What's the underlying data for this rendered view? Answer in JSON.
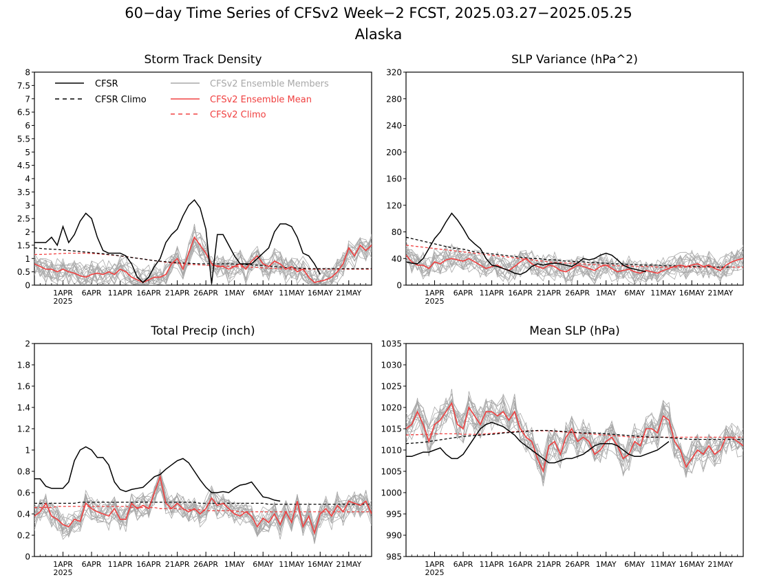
{
  "figure": {
    "title_line1": "60−day Time Series of CFSv2 Week−2 FCST, 2025.03.27−2025.05.25",
    "title_line2": "Alaska"
  },
  "legend": {
    "cfsr": "CFSR",
    "cfsr_climo": "CFSR Climo",
    "members": "CFSv2 Ensemble Members",
    "ens_mean": "CFSv2 Ensemble Mean",
    "cfsv2_climo": "CFSv2 Climo"
  },
  "colors": {
    "cfsr": "#000000",
    "members": "#a8a8a8",
    "ens_mean": "#f04040",
    "cfsv2_climo": "#f04040"
  },
  "x_ticks": [
    {
      "day": 5,
      "label": "1APR",
      "sub": "2025"
    },
    {
      "day": 10,
      "label": "6APR"
    },
    {
      "day": 15,
      "label": "11APR"
    },
    {
      "day": 20,
      "label": "16APR"
    },
    {
      "day": 25,
      "label": "21APR"
    },
    {
      "day": 30,
      "label": "26APR"
    },
    {
      "day": 35,
      "label": "1MAY"
    },
    {
      "day": 40,
      "label": "6MAY"
    },
    {
      "day": 45,
      "label": "11MAY"
    },
    {
      "day": 50,
      "label": "16MAY"
    },
    {
      "day": 55,
      "label": "21MAY"
    }
  ],
  "chart_data": [
    {
      "type": "line",
      "title": "Storm Track Density",
      "ylim": [
        0,
        8
      ],
      "yticks": [
        "0",
        "0.5",
        "1",
        "1.5",
        "2",
        "2.5",
        "3",
        "3.5",
        "4",
        "4.5",
        "5",
        "5.5",
        "6",
        "6.5",
        "7",
        "7.5",
        "8"
      ],
      "series": {
        "cfsr": [
          1.6,
          1.6,
          1.6,
          1.8,
          1.5,
          2.2,
          1.6,
          1.9,
          2.4,
          2.7,
          2.5,
          1.8,
          1.3,
          1.2,
          1.2,
          1.2,
          1.1,
          0.8,
          0.3,
          0.1,
          0.3,
          0.7,
          1.0,
          1.6,
          1.9,
          2.1,
          2.6,
          3.0,
          3.2,
          2.9,
          2.1,
          0.05,
          1.9,
          1.9,
          1.5,
          1.1,
          0.8,
          0.8,
          0.8,
          1.0,
          1.2,
          1.4,
          2.0,
          2.3,
          2.3,
          2.2,
          1.8,
          1.2,
          1.1,
          0.8,
          0.4
        ],
        "cfsr_climo": [
          1.4,
          1.38,
          1.36,
          1.35,
          1.34,
          1.32,
          1.3,
          1.28,
          1.26,
          1.24,
          1.22,
          1.2,
          1.18,
          1.15,
          1.13,
          1.1,
          1.07,
          1.04,
          1.01,
          0.98,
          0.95,
          0.92,
          0.9,
          0.88,
          0.86,
          0.84,
          0.83,
          0.82,
          0.81,
          0.8,
          0.8,
          0.8,
          0.8,
          0.8,
          0.8,
          0.79,
          0.78,
          0.77,
          0.76,
          0.75,
          0.74,
          0.72,
          0.7,
          0.68,
          0.66,
          0.65,
          0.64,
          0.63,
          0.62,
          0.62,
          0.62,
          0.62,
          0.62,
          0.62,
          0.62,
          0.62,
          0.62,
          0.62,
          0.62,
          0.62
        ],
        "ens_mean": [
          0.8,
          0.7,
          0.6,
          0.6,
          0.5,
          0.6,
          0.5,
          0.45,
          0.35,
          0.3,
          0.4,
          0.45,
          0.4,
          0.5,
          0.4,
          0.6,
          0.5,
          0.3,
          0.2,
          0.1,
          0.2,
          0.3,
          0.3,
          0.4,
          0.8,
          1.0,
          0.6,
          1.2,
          1.8,
          1.5,
          1.2,
          0.8,
          0.7,
          0.7,
          0.6,
          0.7,
          0.8,
          0.6,
          0.9,
          1.1,
          0.8,
          0.7,
          0.9,
          0.8,
          0.6,
          0.7,
          0.5,
          0.6,
          0.3,
          0.1,
          0.15,
          0.2,
          0.3,
          0.5,
          0.8,
          1.4,
          1.1,
          1.5,
          1.3,
          1.5,
          1.0,
          0.7,
          0.5,
          1.1
        ],
        "cfsv2_climo": [
          1.15,
          1.15,
          1.16,
          1.17,
          1.18,
          1.19,
          1.2,
          1.2,
          1.2,
          1.2,
          1.19,
          1.18,
          1.16,
          1.14,
          1.12,
          1.1,
          1.07,
          1.04,
          1.01,
          0.98,
          0.95,
          0.92,
          0.89,
          0.86,
          0.84,
          0.82,
          0.8,
          0.78,
          0.77,
          0.76,
          0.75,
          0.74,
          0.73,
          0.72,
          0.71,
          0.7,
          0.69,
          0.68,
          0.67,
          0.66,
          0.65,
          0.64,
          0.63,
          0.62,
          0.61,
          0.6,
          0.6,
          0.6,
          0.6,
          0.6,
          0.6,
          0.6,
          0.6,
          0.6,
          0.6,
          0.6,
          0.6,
          0.6,
          0.6,
          0.6
        ]
      }
    },
    {
      "type": "line",
      "title": "SLP Variance (hPa^2)",
      "ylim": [
        0,
        320
      ],
      "yticks": [
        "0",
        "40",
        "80",
        "120",
        "160",
        "200",
        "240",
        "280",
        "320"
      ],
      "series": {
        "cfsr": [
          35,
          33,
          32,
          40,
          55,
          70,
          80,
          95,
          108,
          98,
          85,
          70,
          62,
          55,
          40,
          30,
          28,
          25,
          22,
          18,
          16,
          20,
          28,
          32,
          30,
          32,
          33,
          32,
          30,
          28,
          33,
          40,
          38,
          40,
          45,
          48,
          45,
          38,
          30,
          26,
          24,
          22,
          20
        ],
        "cfsr_climo": [
          72,
          70,
          68,
          66,
          64,
          62,
          60,
          58,
          56,
          55,
          54,
          52,
          50,
          49,
          48,
          47,
          46,
          45,
          44,
          43,
          42,
          41,
          40,
          40,
          39,
          38,
          38,
          37,
          36,
          36,
          35,
          35,
          34,
          34,
          33,
          33,
          32,
          32,
          32,
          31,
          31,
          30,
          30,
          30,
          30,
          29,
          29,
          29,
          29,
          28,
          28,
          28,
          28,
          28,
          27,
          27,
          27,
          27
        ],
        "ens_mean": [
          45,
          35,
          30,
          30,
          25,
          35,
          32,
          38,
          40,
          38,
          36,
          40,
          35,
          30,
          25,
          28,
          30,
          25,
          22,
          28,
          35,
          40,
          32,
          28,
          25,
          30,
          28,
          22,
          20,
          25,
          30,
          28,
          25,
          22,
          28,
          30,
          25,
          20,
          22,
          24,
          20,
          18,
          22,
          20,
          18,
          22,
          25,
          28,
          30,
          28,
          30,
          32,
          28,
          30,
          25,
          22,
          30,
          35,
          38,
          40,
          45,
          30,
          25,
          30
        ],
        "cfsv2_climo": [
          60,
          59,
          58,
          57,
          56,
          55,
          54,
          53,
          52,
          51,
          50,
          49,
          48,
          47,
          46,
          45,
          44,
          43,
          42,
          41,
          40,
          39,
          38,
          37,
          36,
          35,
          34,
          34,
          33,
          33,
          32,
          32,
          31,
          31,
          30,
          30,
          30,
          29,
          29,
          29,
          28,
          28,
          28,
          28,
          27,
          27,
          27,
          27,
          27,
          27,
          27,
          27,
          27,
          27,
          27,
          27,
          27,
          27,
          27,
          27
        ]
      }
    },
    {
      "type": "line",
      "title": "Total Precip (inch)",
      "ylim": [
        0,
        2
      ],
      "yticks": [
        "0",
        "0.2",
        "0.4",
        "0.6",
        "0.8",
        "1",
        "1.2",
        "1.4",
        "1.6",
        "1.8",
        "2"
      ],
      "series": {
        "cfsr": [
          0.73,
          0.73,
          0.66,
          0.64,
          0.64,
          0.64,
          0.7,
          0.9,
          1.0,
          1.03,
          1.0,
          0.93,
          0.93,
          0.86,
          0.7,
          0.63,
          0.61,
          0.63,
          0.64,
          0.65,
          0.7,
          0.75,
          0.77,
          0.82,
          0.86,
          0.9,
          0.92,
          0.88,
          0.8,
          0.72,
          0.65,
          0.6,
          0.6,
          0.61,
          0.6,
          0.64,
          0.67,
          0.68,
          0.7,
          0.63,
          0.56,
          0.55,
          0.53,
          0.52
        ],
        "cfsr_climo": [
          0.5,
          0.5,
          0.5,
          0.5,
          0.5,
          0.5,
          0.5,
          0.5,
          0.51,
          0.51,
          0.51,
          0.51,
          0.51,
          0.51,
          0.51,
          0.51,
          0.51,
          0.51,
          0.51,
          0.51,
          0.51,
          0.51,
          0.51,
          0.51,
          0.51,
          0.51,
          0.51,
          0.51,
          0.51,
          0.5,
          0.5,
          0.5,
          0.5,
          0.5,
          0.5,
          0.5,
          0.5,
          0.5,
          0.5,
          0.5,
          0.5,
          0.49,
          0.49,
          0.49,
          0.49,
          0.49,
          0.49,
          0.49,
          0.49,
          0.49,
          0.49,
          0.49,
          0.49,
          0.49,
          0.49,
          0.49,
          0.49,
          0.49,
          0.49,
          0.49
        ],
        "ens_mean": [
          0.38,
          0.42,
          0.5,
          0.38,
          0.35,
          0.3,
          0.28,
          0.35,
          0.33,
          0.5,
          0.45,
          0.42,
          0.4,
          0.38,
          0.45,
          0.35,
          0.35,
          0.5,
          0.45,
          0.48,
          0.45,
          0.6,
          0.75,
          0.5,
          0.45,
          0.5,
          0.45,
          0.42,
          0.45,
          0.4,
          0.45,
          0.55,
          0.48,
          0.5,
          0.45,
          0.4,
          0.38,
          0.42,
          0.38,
          0.28,
          0.36,
          0.32,
          0.4,
          0.3,
          0.42,
          0.32,
          0.52,
          0.28,
          0.38,
          0.22,
          0.4,
          0.45,
          0.38,
          0.48,
          0.42,
          0.52,
          0.5,
          0.48,
          0.52,
          0.4
        ],
        "cfsv2_climo": [
          0.46,
          0.46,
          0.46,
          0.46,
          0.47,
          0.47,
          0.47,
          0.47,
          0.47,
          0.47,
          0.47,
          0.47,
          0.47,
          0.47,
          0.47,
          0.47,
          0.47,
          0.46,
          0.46,
          0.46,
          0.46,
          0.46,
          0.45,
          0.45,
          0.45,
          0.45,
          0.44,
          0.44,
          0.44,
          0.44,
          0.43,
          0.43,
          0.43,
          0.43,
          0.43,
          0.43,
          0.42,
          0.42,
          0.42,
          0.42,
          0.42,
          0.42,
          0.42,
          0.42,
          0.42,
          0.42,
          0.42,
          0.42,
          0.42,
          0.42,
          0.42,
          0.42,
          0.42,
          0.42,
          0.42,
          0.42,
          0.42,
          0.42,
          0.42,
          0.42
        ]
      }
    },
    {
      "type": "line",
      "title": "Mean SLP (hPa)",
      "ylim": [
        985,
        1035
      ],
      "yticks": [
        "985",
        "990",
        "995",
        "1000",
        "1005",
        "1010",
        "1015",
        "1020",
        "1025",
        "1030",
        "1035"
      ],
      "series": {
        "cfsr": [
          1008.5,
          1008.5,
          1009,
          1009.5,
          1009.5,
          1010,
          1010.5,
          1009,
          1008,
          1008,
          1009,
          1011,
          1013,
          1015,
          1016,
          1016.5,
          1016,
          1015.5,
          1014.5,
          1013.5,
          1012,
          1011,
          1010,
          1009,
          1008,
          1007,
          1007,
          1007.5,
          1008,
          1008,
          1008.5,
          1009,
          1010,
          1011,
          1011.5,
          1011.5,
          1011.5,
          1011,
          1010,
          1009,
          1008.5,
          1008.5,
          1009,
          1009.5,
          1010,
          1011,
          1012
        ],
        "cfsr_climo": [
          1011.5,
          1011.6,
          1011.7,
          1011.8,
          1012,
          1012.2,
          1012.4,
          1012.6,
          1012.8,
          1013,
          1013.2,
          1013.3,
          1013.4,
          1013.5,
          1013.6,
          1013.7,
          1013.8,
          1014,
          1014.1,
          1014.2,
          1014.3,
          1014.4,
          1014.5,
          1014.6,
          1014.6,
          1014.6,
          1014.5,
          1014.4,
          1014.3,
          1014.2,
          1014.1,
          1014,
          1014,
          1014,
          1013.9,
          1013.8,
          1013.7,
          1013.6,
          1013.5,
          1013.4,
          1013.3,
          1013.2,
          1013.1,
          1013,
          1013,
          1013,
          1012.9,
          1012.8,
          1012.7,
          1012.6,
          1012.5,
          1012.5,
          1012.5,
          1012.5,
          1012.5,
          1012.5,
          1012.5,
          1012.5,
          1012.5,
          1012.5
        ],
        "ens_mean": [
          1015,
          1016,
          1019,
          1016,
          1012,
          1016,
          1017,
          1019,
          1021,
          1016,
          1015,
          1020,
          1018,
          1016,
          1019,
          1019,
          1018,
          1019,
          1017,
          1019,
          1015,
          1013,
          1012,
          1008,
          1005,
          1011,
          1012,
          1009,
          1013,
          1015,
          1012,
          1013,
          1012,
          1009,
          1010,
          1012,
          1013,
          1011,
          1008,
          1009,
          1012,
          1011,
          1015,
          1015,
          1014,
          1018,
          1017,
          1012,
          1010,
          1006,
          1008,
          1010,
          1009,
          1011,
          1009,
          1010,
          1013,
          1013,
          1012,
          1011
        ],
        "cfsv2_climo": [
          1013.5,
          1013.6,
          1013.6,
          1013.7,
          1013.7,
          1013.8,
          1013.8,
          1013.8,
          1013.8,
          1013.8,
          1013.7,
          1013.7,
          1013.7,
          1013.7,
          1013.8,
          1013.9,
          1014,
          1014.1,
          1014.2,
          1014.3,
          1014.4,
          1014.5,
          1014.5,
          1014.5,
          1014.5,
          1014.5,
          1014.4,
          1014.3,
          1014.2,
          1014.1,
          1014,
          1013.9,
          1013.8,
          1013.7,
          1013.6,
          1013.5,
          1013.4,
          1013.3,
          1013.2,
          1013.1,
          1013,
          1013,
          1013,
          1013,
          1013,
          1013,
          1013,
          1013,
          1013,
          1013,
          1013,
          1013,
          1013,
          1013,
          1013,
          1013,
          1013,
          1013,
          1013,
          1013
        ]
      }
    }
  ]
}
